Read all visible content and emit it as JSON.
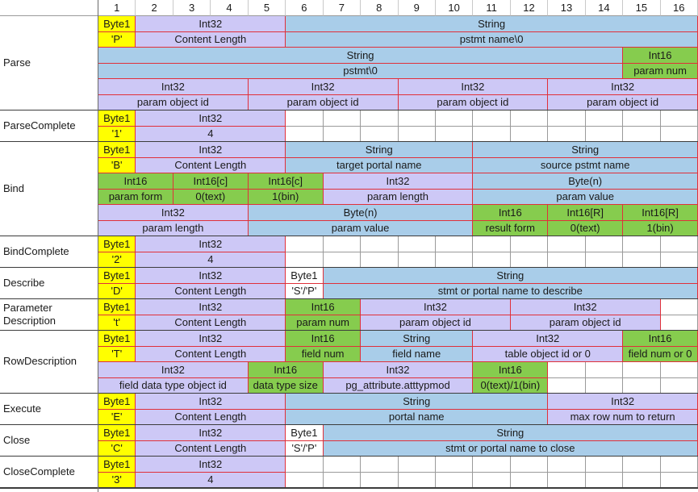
{
  "columns": [
    "1",
    "2",
    "3",
    "4",
    "5",
    "6",
    "7",
    "8",
    "9",
    "10",
    "11",
    "12",
    "13",
    "14",
    "15",
    "16"
  ],
  "colors": {
    "byte": "#ffff00",
    "int32": "#cdc8f6",
    "string": "#a9cde9",
    "int16": "#86cc4e",
    "plain": "#ffffff",
    "cell_border": "#e0303a",
    "grid_border": "#9a9a9a"
  },
  "groups": [
    {
      "label": "Parse",
      "rows": [
        [
          {
            "span": 1,
            "text": "Byte1",
            "type": "byte"
          },
          {
            "span": 4,
            "text": "Int32",
            "type": "int32"
          },
          {
            "span": 11,
            "text": "String",
            "type": "string"
          }
        ],
        [
          {
            "span": 1,
            "text": "'P'",
            "type": "byte"
          },
          {
            "span": 4,
            "text": "Content Length",
            "type": "int32"
          },
          {
            "span": 11,
            "text": "pstmt name\\0",
            "type": "string"
          }
        ],
        [
          {
            "span": 14,
            "text": "String",
            "type": "string"
          },
          {
            "span": 2,
            "text": "Int16",
            "type": "int16"
          }
        ],
        [
          {
            "span": 14,
            "text": "pstmt\\0",
            "type": "string"
          },
          {
            "span": 2,
            "text": "param num",
            "type": "int16"
          }
        ],
        [
          {
            "span": 4,
            "text": "Int32",
            "type": "int32"
          },
          {
            "span": 4,
            "text": "Int32",
            "type": "int32"
          },
          {
            "span": 4,
            "text": "Int32",
            "type": "int32"
          },
          {
            "span": 4,
            "text": "Int32",
            "type": "int32"
          }
        ],
        [
          {
            "span": 4,
            "text": "param object id",
            "type": "int32"
          },
          {
            "span": 4,
            "text": "param object id",
            "type": "int32"
          },
          {
            "span": 4,
            "text": "param object id",
            "type": "int32"
          },
          {
            "span": 4,
            "text": "param object id",
            "type": "int32"
          }
        ]
      ]
    },
    {
      "label": "ParseComplete",
      "rows": [
        [
          {
            "span": 1,
            "text": "Byte1",
            "type": "byte"
          },
          {
            "span": 4,
            "text": "Int32",
            "type": "int32"
          }
        ],
        [
          {
            "span": 1,
            "text": "'1'",
            "type": "byte"
          },
          {
            "span": 4,
            "text": "4",
            "type": "int32"
          }
        ]
      ]
    },
    {
      "label": "Bind",
      "rows": [
        [
          {
            "span": 1,
            "text": "Byte1",
            "type": "byte"
          },
          {
            "span": 4,
            "text": "Int32",
            "type": "int32"
          },
          {
            "span": 5,
            "text": "String",
            "type": "string"
          },
          {
            "span": 6,
            "text": "String",
            "type": "string"
          }
        ],
        [
          {
            "span": 1,
            "text": "'B'",
            "type": "byte"
          },
          {
            "span": 4,
            "text": "Content Length",
            "type": "int32"
          },
          {
            "span": 5,
            "text": "target portal name",
            "type": "string"
          },
          {
            "span": 6,
            "text": "source pstmt name",
            "type": "string"
          }
        ],
        [
          {
            "span": 2,
            "text": "Int16",
            "type": "int16"
          },
          {
            "span": 2,
            "text": "Int16[c]",
            "type": "int16"
          },
          {
            "span": 2,
            "text": "Int16[c]",
            "type": "int16"
          },
          {
            "span": 4,
            "text": "Int32",
            "type": "int32"
          },
          {
            "span": 6,
            "text": "Byte(n)",
            "type": "string"
          }
        ],
        [
          {
            "span": 2,
            "text": "param form",
            "type": "int16"
          },
          {
            "span": 2,
            "text": "0(text)",
            "type": "int16"
          },
          {
            "span": 2,
            "text": "1(bin)",
            "type": "int16"
          },
          {
            "span": 4,
            "text": "param length",
            "type": "int32"
          },
          {
            "span": 6,
            "text": "param value",
            "type": "string"
          }
        ],
        [
          {
            "span": 4,
            "text": "Int32",
            "type": "int32"
          },
          {
            "span": 6,
            "text": "Byte(n)",
            "type": "string"
          },
          {
            "span": 2,
            "text": "Int16",
            "type": "int16"
          },
          {
            "span": 2,
            "text": "Int16[R]",
            "type": "int16"
          },
          {
            "span": 2,
            "text": "Int16[R]",
            "type": "int16"
          }
        ],
        [
          {
            "span": 4,
            "text": "param length",
            "type": "int32"
          },
          {
            "span": 6,
            "text": "param value",
            "type": "string"
          },
          {
            "span": 2,
            "text": "result form",
            "type": "int16"
          },
          {
            "span": 2,
            "text": "0(text)",
            "type": "int16"
          },
          {
            "span": 2,
            "text": "1(bin)",
            "type": "int16"
          }
        ]
      ]
    },
    {
      "label": "BindComplete",
      "rows": [
        [
          {
            "span": 1,
            "text": "Byte1",
            "type": "byte"
          },
          {
            "span": 4,
            "text": "Int32",
            "type": "int32"
          }
        ],
        [
          {
            "span": 1,
            "text": "'2'",
            "type": "byte"
          },
          {
            "span": 4,
            "text": "4",
            "type": "int32"
          }
        ]
      ]
    },
    {
      "label": "Describe",
      "rows": [
        [
          {
            "span": 1,
            "text": "Byte1",
            "type": "byte"
          },
          {
            "span": 4,
            "text": "Int32",
            "type": "int32"
          },
          {
            "span": 1,
            "text": "Byte1",
            "type": "plain"
          },
          {
            "span": 10,
            "text": "String",
            "type": "string"
          }
        ],
        [
          {
            "span": 1,
            "text": "'D'",
            "type": "byte"
          },
          {
            "span": 4,
            "text": "Content Length",
            "type": "int32"
          },
          {
            "span": 1,
            "text": "'S'/'P'",
            "type": "plain"
          },
          {
            "span": 10,
            "text": "stmt or portal name to describe",
            "type": "string"
          }
        ]
      ]
    },
    {
      "label": "Parameter Description",
      "rows": [
        [
          {
            "span": 1,
            "text": "Byte1",
            "type": "byte"
          },
          {
            "span": 4,
            "text": "Int32",
            "type": "int32"
          },
          {
            "span": 2,
            "text": "Int16",
            "type": "int16"
          },
          {
            "span": 4,
            "text": "Int32",
            "type": "int32"
          },
          {
            "span": 4,
            "text": "Int32",
            "type": "int32"
          }
        ],
        [
          {
            "span": 1,
            "text": "'t'",
            "type": "byte"
          },
          {
            "span": 4,
            "text": "Content Length",
            "type": "int32"
          },
          {
            "span": 2,
            "text": "param num",
            "type": "int16"
          },
          {
            "span": 4,
            "text": "param object id",
            "type": "int32"
          },
          {
            "span": 4,
            "text": "param object id",
            "type": "int32"
          }
        ]
      ]
    },
    {
      "label": "RowDescription",
      "rows": [
        [
          {
            "span": 1,
            "text": "Byte1",
            "type": "byte"
          },
          {
            "span": 4,
            "text": "Int32",
            "type": "int32"
          },
          {
            "span": 2,
            "text": "Int16",
            "type": "int16"
          },
          {
            "span": 3,
            "text": "String",
            "type": "string"
          },
          {
            "span": 4,
            "text": "Int32",
            "type": "int32"
          },
          {
            "span": 2,
            "text": "Int16",
            "type": "int16"
          }
        ],
        [
          {
            "span": 1,
            "text": "'T'",
            "type": "byte"
          },
          {
            "span": 4,
            "text": "Content Length",
            "type": "int32"
          },
          {
            "span": 2,
            "text": "field num",
            "type": "int16"
          },
          {
            "span": 3,
            "text": "field name",
            "type": "string"
          },
          {
            "span": 4,
            "text": "table object id or 0",
            "type": "int32"
          },
          {
            "span": 2,
            "text": "field num or 0",
            "type": "int16"
          }
        ],
        [
          {
            "span": 4,
            "text": "Int32",
            "type": "int32"
          },
          {
            "span": 2,
            "text": "Int16",
            "type": "int16"
          },
          {
            "span": 4,
            "text": "Int32",
            "type": "int32"
          },
          {
            "span": 2,
            "text": "Int16",
            "type": "int16"
          }
        ],
        [
          {
            "span": 4,
            "text": "field data type object id",
            "type": "int32"
          },
          {
            "span": 2,
            "text": "data type size",
            "type": "int16"
          },
          {
            "span": 4,
            "text": "pg_attribute.atttypmod",
            "type": "int32"
          },
          {
            "span": 2,
            "text": "0(text)/1(bin)",
            "type": "int16"
          }
        ]
      ]
    },
    {
      "label": "Execute",
      "rows": [
        [
          {
            "span": 1,
            "text": "Byte1",
            "type": "byte"
          },
          {
            "span": 4,
            "text": "Int32",
            "type": "int32"
          },
          {
            "span": 7,
            "text": "String",
            "type": "string"
          },
          {
            "span": 4,
            "text": "Int32",
            "type": "int32"
          }
        ],
        [
          {
            "span": 1,
            "text": "'E'",
            "type": "byte"
          },
          {
            "span": 4,
            "text": "Content Length",
            "type": "int32"
          },
          {
            "span": 7,
            "text": "portal name",
            "type": "string"
          },
          {
            "span": 4,
            "text": "max row num to return",
            "type": "int32"
          }
        ]
      ]
    },
    {
      "label": "Close",
      "rows": [
        [
          {
            "span": 1,
            "text": "Byte1",
            "type": "byte"
          },
          {
            "span": 4,
            "text": "Int32",
            "type": "int32"
          },
          {
            "span": 1,
            "text": "Byte1",
            "type": "plain"
          },
          {
            "span": 10,
            "text": "String",
            "type": "string"
          }
        ],
        [
          {
            "span": 1,
            "text": "'C'",
            "type": "byte"
          },
          {
            "span": 4,
            "text": "Content Length",
            "type": "int32"
          },
          {
            "span": 1,
            "text": "'S'/'P'",
            "type": "plain"
          },
          {
            "span": 10,
            "text": "stmt or portal name to close",
            "type": "string"
          }
        ]
      ]
    },
    {
      "label": "CloseComplete",
      "rows": [
        [
          {
            "span": 1,
            "text": "Byte1",
            "type": "byte"
          },
          {
            "span": 4,
            "text": "Int32",
            "type": "int32"
          }
        ],
        [
          {
            "span": 1,
            "text": "'3'",
            "type": "byte"
          },
          {
            "span": 4,
            "text": "4",
            "type": "int32"
          }
        ]
      ]
    }
  ]
}
